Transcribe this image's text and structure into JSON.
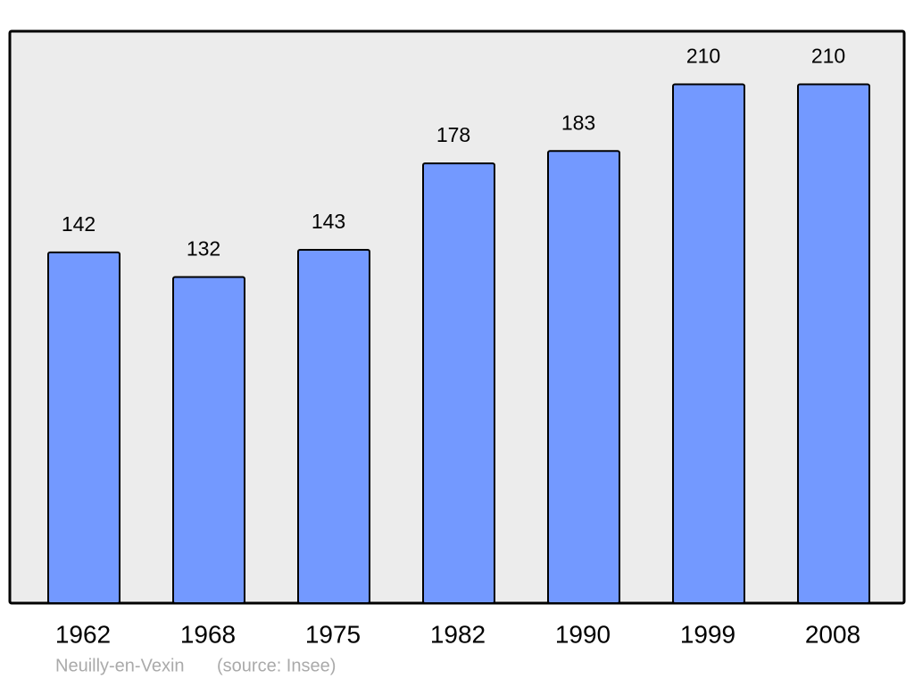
{
  "chart_data": {
    "type": "bar",
    "categories": [
      "1962",
      "1968",
      "1975",
      "1982",
      "1990",
      "1999",
      "2008"
    ],
    "values": [
      142,
      132,
      143,
      178,
      183,
      210,
      210
    ],
    "color": "#7399ff",
    "ylim": [
      0,
      231.5
    ],
    "caption": "Neuilly-en-Vexin",
    "source": "(source: Insee)"
  }
}
